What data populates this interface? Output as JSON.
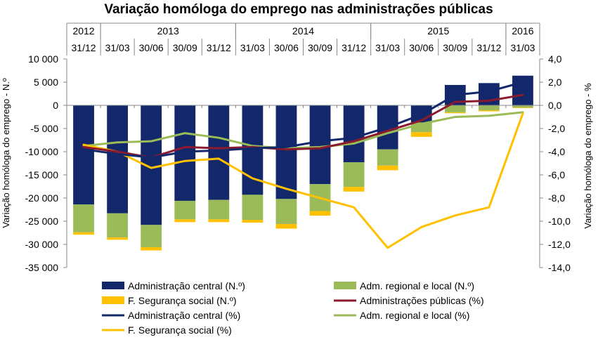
{
  "chart_data": {
    "type": "bar",
    "title": "Variação homóloga do emprego nas administrações públicas",
    "ylabel_left": "Variação homóloga do emprego - N.º",
    "ylabel_right": "Variação homóloga do emprego - %",
    "ylim_left": [
      -35000,
      10000
    ],
    "ylim_right": [
      -14.0,
      4.0
    ],
    "left_ticks": [
      {
        "value": 10000,
        "label": "10 000"
      },
      {
        "value": 5000,
        "label": "5 000"
      },
      {
        "value": 0,
        "label": "0"
      },
      {
        "value": -5000,
        "label": "-5 000"
      },
      {
        "value": -10000,
        "label": "-10 000"
      },
      {
        "value": -15000,
        "label": "-15 000"
      },
      {
        "value": -20000,
        "label": "-20 000"
      },
      {
        "value": -25000,
        "label": "-25 000"
      },
      {
        "value": -30000,
        "label": "-30 000"
      },
      {
        "value": -35000,
        "label": "-35 000"
      }
    ],
    "right_ticks": [
      {
        "value": 4.0,
        "label": "4,0"
      },
      {
        "value": 2.0,
        "label": "2,0"
      },
      {
        "value": 0.0,
        "label": "0,0"
      },
      {
        "value": -2.0,
        "label": "-2,0"
      },
      {
        "value": -4.0,
        "label": "-4,0"
      },
      {
        "value": -6.0,
        "label": "-6,0"
      },
      {
        "value": -8.0,
        "label": "-8,0"
      },
      {
        "value": -10.0,
        "label": "-10,0"
      },
      {
        "value": -12.0,
        "label": "-12,0"
      },
      {
        "value": -14.0,
        "label": "-14,0"
      }
    ],
    "categories": [
      "31/12",
      "31/03",
      "30/06",
      "30/09",
      "31/12",
      "31/03",
      "30/06",
      "30/09",
      "31/12",
      "31/03",
      "30/06",
      "30/09",
      "31/12",
      "31/03"
    ],
    "years": [
      {
        "label": "2012",
        "start": 0,
        "end": 0
      },
      {
        "label": "2013",
        "start": 1,
        "end": 4
      },
      {
        "label": "2014",
        "start": 5,
        "end": 8
      },
      {
        "label": "2015",
        "start": 9,
        "end": 12
      },
      {
        "label": "2016",
        "start": 13,
        "end": 13
      }
    ],
    "bar_series": [
      {
        "name": "Administração central (N.º)",
        "color": "#13286B",
        "values": [
          -21400,
          -23300,
          -25800,
          -20600,
          -20400,
          -19300,
          -20200,
          -17000,
          -12300,
          -9500,
          -3700,
          4400,
          4800,
          6400
        ]
      },
      {
        "name": "Adm. regional e local (N.º)",
        "color": "#9BBB59",
        "values": [
          -6000,
          -5200,
          -4800,
          -4000,
          -4200,
          -5400,
          -5400,
          -5800,
          -5300,
          -3500,
          -2100,
          -1500,
          -1100,
          -500
        ]
      },
      {
        "name": "F. Segurança social (N.º)",
        "color": "#FFC000",
        "values": [
          -500,
          -500,
          -700,
          -600,
          -600,
          -600,
          -1000,
          -1000,
          -1000,
          -1000,
          -1000,
          -200,
          -200,
          -100
        ]
      }
    ],
    "line_series": [
      {
        "name": "Administrações públicas (%)",
        "color": "#8B1A2E",
        "width": 3,
        "values": [
          -3.6,
          -4.0,
          -4.5,
          -3.6,
          -3.7,
          -3.6,
          -3.8,
          -3.7,
          -3.1,
          -2.2,
          -1.3,
          0.3,
          0.4,
          0.9
        ]
      },
      {
        "name": "Administração central  (%)",
        "color": "#13286B",
        "width": 3,
        "values": [
          -3.8,
          -4.2,
          -4.5,
          -4.0,
          -3.9,
          -3.7,
          -3.6,
          -3.1,
          -2.8,
          -1.9,
          -0.8,
          0.9,
          1.2,
          2.0
        ]
      },
      {
        "name": "Adm. regional e local (%)",
        "color": "#9BBB59",
        "width": 3,
        "values": [
          -3.5,
          -3.2,
          -3.1,
          -2.4,
          -2.8,
          -3.5,
          -3.7,
          -3.6,
          -3.3,
          -2.4,
          -1.6,
          -1.0,
          -0.9,
          -0.6
        ]
      },
      {
        "name": "F. Segurança social  (%)",
        "color": "#FFC000",
        "width": 3,
        "values": [
          -3.4,
          -4.0,
          -5.4,
          -4.8,
          -4.6,
          -6.3,
          -7.2,
          -8.0,
          -8.8,
          -12.3,
          -10.5,
          -9.5,
          -8.8,
          -0.7
        ]
      }
    ],
    "legend": {
      "placement": "bottom",
      "items": [
        {
          "label": "Administração central (N.º)",
          "kind": "bar",
          "color": "#13286B"
        },
        {
          "label": "Adm. regional e local (N.º)",
          "kind": "bar",
          "color": "#9BBB59"
        },
        {
          "label": "F. Segurança social  (N.º)",
          "kind": "bar",
          "color": "#FFC000"
        },
        {
          "label": "Administrações públicas (%)",
          "kind": "line",
          "color": "#8B1A2E"
        },
        {
          "label": "Administração central  (%)",
          "kind": "line",
          "color": "#13286B"
        },
        {
          "label": "Adm. regional e local (%)",
          "kind": "line",
          "color": "#9BBB59"
        },
        {
          "label": "F. Segurança social  (%)",
          "kind": "line",
          "color": "#FFC000"
        }
      ]
    }
  }
}
